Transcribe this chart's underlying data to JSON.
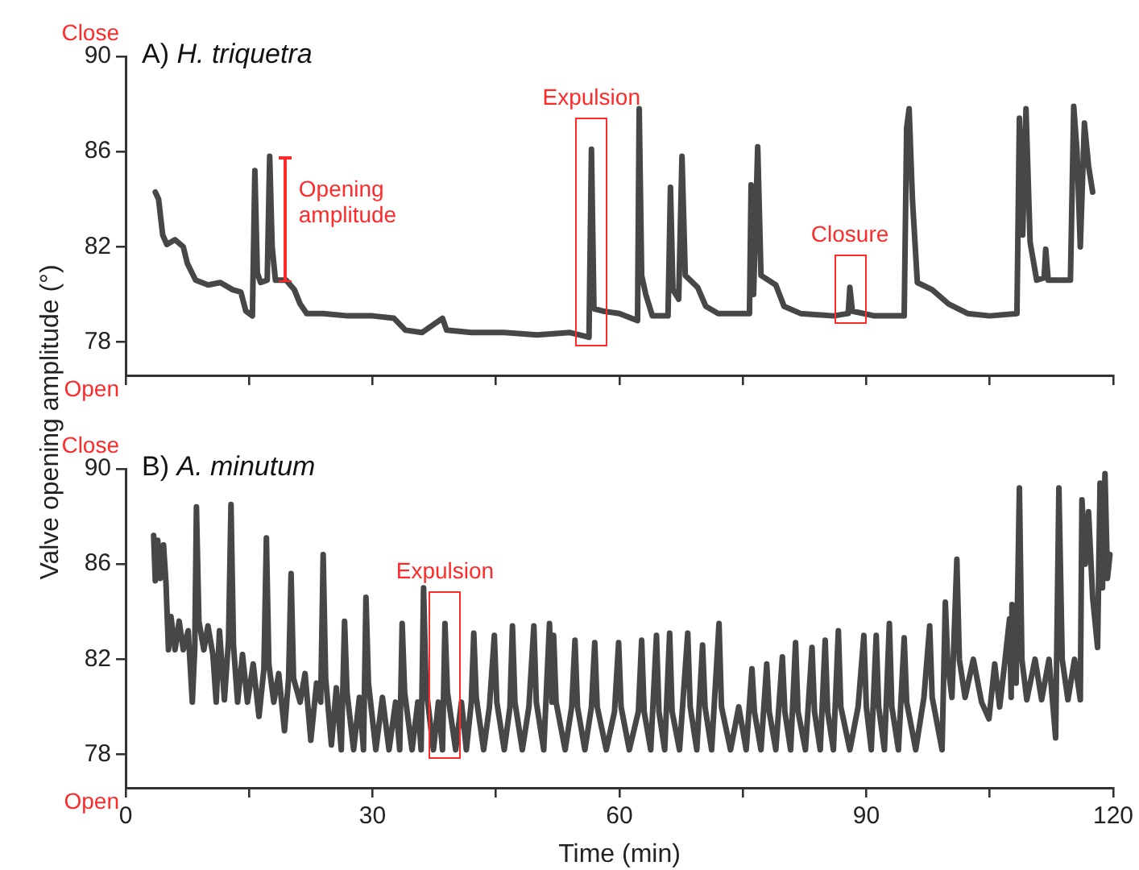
{
  "chart_data": [
    {
      "type": "line",
      "title": "A) H. triquetra",
      "ylabel": "Valve opening amplitude (°)",
      "xlim": [
        0,
        120
      ],
      "xticks": [
        {
          "value": 0,
          "label": null
        },
        {
          "value": 15,
          "label": null
        },
        {
          "value": 30,
          "label": null
        },
        {
          "value": 45,
          "label": null
        },
        {
          "value": 60,
          "label": null
        },
        {
          "value": 75,
          "label": null
        },
        {
          "value": 90,
          "label": null
        },
        {
          "value": 105,
          "label": null
        },
        {
          "value": 120,
          "label": null
        }
      ],
      "ylim": [
        76.6,
        90
      ],
      "yticks": [
        78,
        82,
        86,
        90
      ],
      "tick_labels": "y",
      "grid": false,
      "legend": false,
      "marker": "none",
      "line_style": "solid",
      "annotations": [
        "Close",
        "Open",
        {
          "text": "Opening amplitude",
          "x": 17.5,
          "y": 85.8
        },
        {
          "text": "Expulsion",
          "x": 56.6,
          "y": 86.1
        },
        {
          "text": "Closure",
          "x": 88.0,
          "y": 80.3
        }
      ],
      "series": [
        {
          "color": "#474747",
          "x": [
            3.6,
            4.0,
            4.5,
            5.0,
            6.0,
            7.0,
            7.5,
            8.5,
            10.0,
            11.5,
            13.0,
            14.0,
            14.6,
            15.4,
            15.7,
            16.0,
            16.4,
            17.2,
            17.5,
            17.8,
            18.2,
            19.5,
            20.5,
            21.2,
            22.0,
            24.0,
            27.0,
            30.0,
            32.6,
            34.0,
            36.0,
            38.5,
            39.0,
            42.0,
            46.0,
            50.0,
            54.0,
            56.3,
            56.6,
            56.9,
            58.0,
            60.0,
            62.2,
            62.4,
            62.7,
            63.2,
            64.0,
            65.9,
            66.2,
            66.5,
            67.2,
            67.6,
            68.0,
            69.5,
            70.5,
            72.0,
            75.8,
            76.0,
            76.3,
            76.8,
            77.2,
            79.0,
            80.0,
            82.0,
            86.0,
            87.8,
            88.0,
            88.3,
            91.0,
            94.6,
            94.9,
            95.2,
            95.6,
            96.2,
            98.0,
            100.0,
            102.3,
            105.0,
            108.3,
            108.6,
            109.0,
            109.4,
            109.9,
            110.7,
            111.6,
            111.8,
            112.1,
            114.8,
            115.2,
            115.6,
            116.0,
            116.5,
            117.0,
            117.5
          ],
          "values": [
            84.3,
            84.0,
            82.5,
            82.1,
            82.3,
            82.0,
            81.3,
            80.6,
            80.4,
            80.5,
            80.2,
            80.1,
            79.3,
            79.1,
            85.2,
            80.9,
            80.5,
            80.6,
            85.8,
            82.0,
            80.6,
            80.6,
            80.2,
            79.6,
            79.2,
            79.2,
            79.1,
            79.1,
            79.0,
            78.5,
            78.4,
            79.0,
            78.5,
            78.4,
            78.4,
            78.3,
            78.4,
            78.2,
            86.1,
            79.4,
            79.3,
            79.2,
            78.9,
            87.8,
            80.8,
            80.0,
            79.1,
            79.1,
            84.5,
            80.2,
            79.8,
            85.8,
            80.8,
            80.3,
            79.5,
            79.2,
            79.2,
            84.6,
            80.0,
            86.2,
            80.8,
            80.4,
            79.5,
            79.2,
            79.1,
            79.2,
            80.3,
            79.3,
            79.1,
            79.1,
            87.0,
            87.8,
            84.0,
            80.5,
            80.2,
            79.6,
            79.2,
            79.1,
            79.2,
            87.4,
            82.5,
            87.8,
            82.2,
            80.6,
            80.7,
            81.9,
            80.6,
            80.6,
            87.9,
            86.0,
            82.0,
            87.2,
            85.4,
            84.3
          ]
        }
      ]
    },
    {
      "type": "line",
      "title": "B) A. minutum",
      "xlabel": "Time (min)",
      "xlim": [
        0,
        120
      ],
      "xticks": [
        0,
        {
          "value": 15,
          "label": null
        },
        30,
        {
          "value": 45,
          "label": null
        },
        60,
        {
          "value": 75,
          "label": null
        },
        90,
        {
          "value": 105,
          "label": null
        },
        120
      ],
      "ylim": [
        76.6,
        90
      ],
      "yticks": [
        78,
        82,
        86,
        90
      ],
      "grid": false,
      "legend": false,
      "marker": "none",
      "line_style": "solid",
      "annotations": [
        "Close",
        "Open",
        {
          "text": "Expulsion",
          "x": 38.8,
          "y": 83.5
        }
      ],
      "series": [
        {
          "color": "#474747",
          "x": [
            3.4,
            3.6,
            3.9,
            4.2,
            4.6,
            4.9,
            5.2,
            5.5,
            6.0,
            6.5,
            7.0,
            7.6,
            8.1,
            8.4,
            8.6,
            8.9,
            9.5,
            10.0,
            10.6,
            11.0,
            11.4,
            12.0,
            12.5,
            12.8,
            13.1,
            13.6,
            14.2,
            14.8,
            15.5,
            16.2,
            16.8,
            17.1,
            17.4,
            18.0,
            18.6,
            19.3,
            19.8,
            20.1,
            20.4,
            21.2,
            21.8,
            22.5,
            23.2,
            23.7,
            24.0,
            24.3,
            25.0,
            25.6,
            26.2,
            26.6,
            26.9,
            27.7,
            28.4,
            28.9,
            29.2,
            29.5,
            30.4,
            31.2,
            32.0,
            32.8,
            33.3,
            33.6,
            33.9,
            34.8,
            35.5,
            35.9,
            36.2,
            36.5,
            37.4,
            38.0,
            38.5,
            38.8,
            39.1,
            40.1,
            40.8,
            41.4,
            42.0,
            42.3,
            42.6,
            43.5,
            44.2,
            44.8,
            45.1,
            46.0,
            46.7,
            47.0,
            47.3,
            48.2,
            49.0,
            49.6,
            49.9,
            50.8,
            51.5,
            51.8,
            52.0,
            52.3,
            53.4,
            54.2,
            54.6,
            54.9,
            55.8,
            56.6,
            57.0,
            57.3,
            58.4,
            59.4,
            59.9,
            60.2,
            61.2,
            62.3,
            62.7,
            63.0,
            63.8,
            64.5,
            64.8,
            65.5,
            66.1,
            66.4,
            67.3,
            68.3,
            68.6,
            69.4,
            70.1,
            70.4,
            71.2,
            72.1,
            72.4,
            73.5,
            74.5,
            75.4,
            76.1,
            76.4,
            77.2,
            77.9,
            78.2,
            79.0,
            79.8,
            80.1,
            80.8,
            81.4,
            81.7,
            82.6,
            83.4,
            83.7,
            84.4,
            85.0,
            85.3,
            86.0,
            86.6,
            86.9,
            88.0,
            89.0,
            89.7,
            90.0,
            90.6,
            91.2,
            91.5,
            92.2,
            92.8,
            93.1,
            93.9,
            94.6,
            94.9,
            96.0,
            97.0,
            97.7,
            98.0,
            99.2,
            99.6,
            99.9,
            100.4,
            101.0,
            101.3,
            102.0,
            103.0,
            104.0,
            104.9,
            105.6,
            106.2,
            106.8,
            107.4,
            107.6,
            107.7,
            108.2,
            108.6,
            108.9,
            109.5,
            110.5,
            111.3,
            112.2,
            113.0,
            113.4,
            113.8,
            114.5,
            115.3,
            116.0,
            116.2,
            116.6,
            117.0,
            117.5,
            118.1,
            118.4,
            118.7,
            119.0,
            119.3,
            119.6
          ],
          "values": [
            87.2,
            85.3,
            87.0,
            85.4,
            86.8,
            85.2,
            82.4,
            83.8,
            82.4,
            83.6,
            82.4,
            83.2,
            80.2,
            82.5,
            88.4,
            83.6,
            82.4,
            83.4,
            82.2,
            80.2,
            83.2,
            80.3,
            82.8,
            88.5,
            82.6,
            80.2,
            82.2,
            80.2,
            81.8,
            79.6,
            81.6,
            87.1,
            81.8,
            80.2,
            81.4,
            79.0,
            81.2,
            85.6,
            81.2,
            80.2,
            81.4,
            78.6,
            81.0,
            80.2,
            86.4,
            81.2,
            78.4,
            80.8,
            78.2,
            83.6,
            80.6,
            78.2,
            80.4,
            78.2,
            84.6,
            81.0,
            78.2,
            80.4,
            78.2,
            80.2,
            78.2,
            83.5,
            80.6,
            78.2,
            80.2,
            78.2,
            85.0,
            80.8,
            78.2,
            80.2,
            78.2,
            83.5,
            80.6,
            78.2,
            80.2,
            78.2,
            80.2,
            83.1,
            80.4,
            78.2,
            80.0,
            83.0,
            80.2,
            78.2,
            80.0,
            83.4,
            80.2,
            78.2,
            80.0,
            83.4,
            80.2,
            78.2,
            83.5,
            80.2,
            83.0,
            80.2,
            78.2,
            80.0,
            82.8,
            80.0,
            78.2,
            80.0,
            82.7,
            80.0,
            78.2,
            79.8,
            82.7,
            80.0,
            78.2,
            79.8,
            82.8,
            79.8,
            78.2,
            83.0,
            79.8,
            78.2,
            83.1,
            79.8,
            78.2,
            83.1,
            80.0,
            78.2,
            82.6,
            80.0,
            78.2,
            83.5,
            80.0,
            78.2,
            80.0,
            78.2,
            81.6,
            79.8,
            78.2,
            81.8,
            79.8,
            78.2,
            82.1,
            79.8,
            78.2,
            82.7,
            79.8,
            78.2,
            82.5,
            79.8,
            78.2,
            82.8,
            79.8,
            78.2,
            83.2,
            80.0,
            78.2,
            80.0,
            83.0,
            80.0,
            78.2,
            83.0,
            80.0,
            78.2,
            83.5,
            80.0,
            78.2,
            82.9,
            80.2,
            78.2,
            80.4,
            83.4,
            80.4,
            78.2,
            84.4,
            81.8,
            80.4,
            86.2,
            82.0,
            80.4,
            82.0,
            80.2,
            79.5,
            81.8,
            80.0,
            81.8,
            83.7,
            80.4,
            84.3,
            81.0,
            89.2,
            82.0,
            80.3,
            82.0,
            80.3,
            82.0,
            78.7,
            89.2,
            82.0,
            80.3,
            82.0,
            80.3,
            88.7,
            86.0,
            88.2,
            84.6,
            82.5,
            89.4,
            85.0,
            89.8,
            85.4,
            86.4
          ]
        }
      ]
    }
  ]
}
